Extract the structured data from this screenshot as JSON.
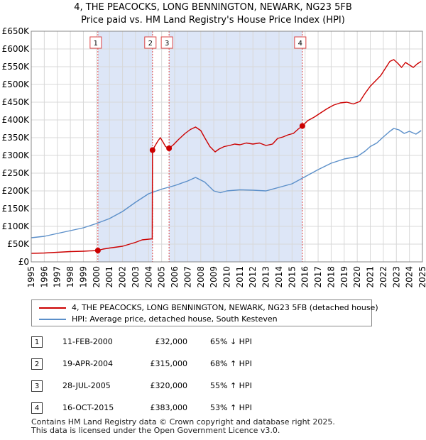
{
  "title_line1": "4, THE PEACOCKS, LONG BENNINGTON, NEWARK, NG23 5FB",
  "title_line2": "Price paid vs. HM Land Registry's House Price Index (HPI)",
  "colors": {
    "property": "#cc0000",
    "hpi": "#5b8fc9",
    "shade": "#dde6f7",
    "grid": "#d8d8d8",
    "marker_line": "#dd4444"
  },
  "chart_data": {
    "type": "line",
    "title": "4, THE PEACOCKS, LONG BENNINGTON, NEWARK, NG23 5FB — Price paid vs. HM Land Registry's House Price Index (HPI)",
    "xlabel": "",
    "ylabel": "",
    "xlim": [
      1995,
      2025
    ],
    "ylim": [
      0,
      650000
    ],
    "y_ticks": [
      0,
      50000,
      100000,
      150000,
      200000,
      250000,
      300000,
      350000,
      400000,
      450000,
      500000,
      550000,
      600000,
      650000
    ],
    "y_tick_labels": [
      "£0",
      "£50K",
      "£100K",
      "£150K",
      "£200K",
      "£250K",
      "£300K",
      "£350K",
      "£400K",
      "£450K",
      "£500K",
      "£550K",
      "£600K",
      "£650K"
    ],
    "x_ticks": [
      1995,
      1996,
      1997,
      1998,
      1999,
      2000,
      2001,
      2002,
      2003,
      2004,
      2005,
      2006,
      2007,
      2008,
      2009,
      2010,
      2011,
      2012,
      2013,
      2014,
      2015,
      2016,
      2017,
      2018,
      2019,
      2020,
      2021,
      2022,
      2023,
      2024,
      2025
    ],
    "x_tick_labels": [
      "1995",
      "1996",
      "1997",
      "1998",
      "1999",
      "2000",
      "2001",
      "2002",
      "2003",
      "2004",
      "2005",
      "2006",
      "2007",
      "2008",
      "2009",
      "2010",
      "2011",
      "2012",
      "2013",
      "2014",
      "2015",
      "2016",
      "2017",
      "2018",
      "2019",
      "2020",
      "2021",
      "2022",
      "2023",
      "2024",
      "2025"
    ],
    "grid": true,
    "shaded_ranges": [
      [
        2000.11,
        2004.3
      ],
      [
        2005.57,
        2015.79
      ]
    ],
    "series": [
      {
        "name": "4, THE PEACOCKS, LONG BENNINGTON, NEWARK, NG23 5FB (detached house)",
        "color": "#cc0000",
        "x": [
          1995,
          1996,
          1997,
          1998,
          1999,
          2000.11,
          2000.5,
          2001,
          2002,
          2003,
          2003.5,
          2004.28,
          2004.3,
          2004.7,
          2004.9,
          2005.1,
          2005.3,
          2005.57,
          2005.9,
          2006.3,
          2006.8,
          2007.2,
          2007.6,
          2008.0,
          2008.3,
          2008.7,
          2009.1,
          2009.4,
          2009.8,
          2010.2,
          2010.6,
          2011.0,
          2011.5,
          2012.0,
          2012.5,
          2013.0,
          2013.5,
          2013.9,
          2014.3,
          2014.7,
          2015.1,
          2015.5,
          2015.79,
          2016.2,
          2016.7,
          2017.2,
          2017.7,
          2018.2,
          2018.7,
          2019.2,
          2019.7,
          2020.2,
          2020.6,
          2021.0,
          2021.4,
          2021.8,
          2022.2,
          2022.5,
          2022.8,
          2023.1,
          2023.4,
          2023.7,
          2024.0,
          2024.3,
          2024.6,
          2024.9
        ],
        "values": [
          24000,
          25000,
          27000,
          29000,
          30000,
          32000,
          36000,
          39000,
          44000,
          55000,
          62000,
          65000,
          315000,
          340000,
          350000,
          338000,
          325000,
          320000,
          330000,
          345000,
          362000,
          373000,
          380000,
          370000,
          350000,
          325000,
          310000,
          318000,
          325000,
          328000,
          332000,
          330000,
          335000,
          332000,
          335000,
          328000,
          332000,
          348000,
          352000,
          358000,
          362000,
          375000,
          383000,
          398000,
          408000,
          420000,
          432000,
          442000,
          448000,
          450000,
          445000,
          452000,
          475000,
          495000,
          510000,
          525000,
          548000,
          565000,
          570000,
          560000,
          548000,
          562000,
          555000,
          548000,
          558000,
          565000
        ]
      },
      {
        "name": "HPI: Average price, detached house, South Kesteven",
        "color": "#5b8fc9",
        "x": [
          1995,
          1996,
          1997,
          1998,
          1999,
          2000,
          2001,
          2002,
          2003,
          2004,
          2005,
          2006,
          2007,
          2007.6,
          2008.3,
          2009,
          2009.5,
          2010,
          2011,
          2012,
          2013,
          2014,
          2015,
          2016,
          2017,
          2018,
          2019,
          2020,
          2020.6,
          2021,
          2021.5,
          2022,
          2022.5,
          2022.8,
          2023.2,
          2023.6,
          2024,
          2024.5,
          2024.9
        ],
        "values": [
          68000,
          72000,
          80000,
          88000,
          96000,
          108000,
          122000,
          142000,
          168000,
          192000,
          205000,
          215000,
          228000,
          238000,
          225000,
          200000,
          195000,
          200000,
          203000,
          202000,
          200000,
          210000,
          220000,
          240000,
          260000,
          278000,
          290000,
          297000,
          312000,
          325000,
          335000,
          352000,
          368000,
          376000,
          372000,
          362000,
          368000,
          360000,
          370000
        ]
      }
    ],
    "sales": [
      {
        "num": "1",
        "x": 2000.11,
        "value": 32000
      },
      {
        "num": "2",
        "x": 2004.3,
        "value": 315000
      },
      {
        "num": "3",
        "x": 2005.57,
        "value": 320000
      },
      {
        "num": "4",
        "x": 2015.79,
        "value": 383000
      }
    ]
  },
  "legend": {
    "property_label": "4, THE PEACOCKS, LONG BENNINGTON, NEWARK, NG23 5FB (detached house)",
    "hpi_label": "HPI: Average price, detached house, South Kesteven"
  },
  "transactions": [
    {
      "num": "1",
      "date": "11-FEB-2000",
      "price": "£32,000",
      "hpi": "65% ↓ HPI"
    },
    {
      "num": "2",
      "date": "19-APR-2004",
      "price": "£315,000",
      "hpi": "68% ↑ HPI"
    },
    {
      "num": "3",
      "date": "28-JUL-2005",
      "price": "£320,000",
      "hpi": "55% ↑ HPI"
    },
    {
      "num": "4",
      "date": "16-OCT-2015",
      "price": "£383,000",
      "hpi": "53% ↑ HPI"
    }
  ],
  "footer_line1": "Contains HM Land Registry data © Crown copyright and database right 2025.",
  "footer_line2": "This data is licensed under the Open Government Licence v3.0."
}
